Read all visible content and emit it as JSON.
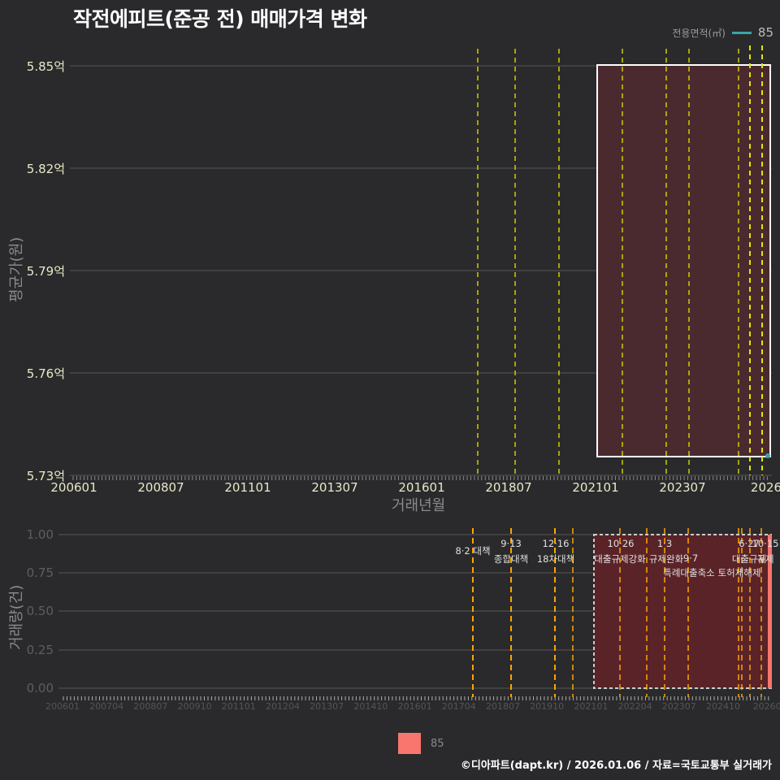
{
  "title": "작전에피트(준공 전) 매매가격 변화",
  "legend_top": {
    "title": "전용면적(㎡)",
    "label": "85",
    "color": "#3aa6a6"
  },
  "legend_bottom": {
    "label": "85",
    "color": "#f8766d"
  },
  "footer": "©디아파트(dapt.kr) / 2026.01.06 / 자료=국토교통부 실거래가",
  "colors": {
    "background": "#2a2a2c",
    "grid": "#555555",
    "vline_top": "#e5e500",
    "vline_bottom": "#ffa500",
    "highlight_fill": "#4a2a2e",
    "highlight_fill_bottom": "#5a2328"
  },
  "chart_data": [
    {
      "type": "line",
      "title": "작전에피트(준공 전) 매매가격 변화",
      "xlabel": "거래년월",
      "ylabel": "평균가(원)",
      "y_ticks": [
        "5.85억",
        "5.82억",
        "5.79억",
        "5.76억",
        "5.73억"
      ],
      "x_ticks": [
        "200601",
        "200807",
        "201101",
        "201307",
        "201601",
        "201807",
        "202101",
        "202307",
        "2026"
      ],
      "ylim": [
        5.73,
        5.85
      ],
      "series": [
        {
          "name": "85",
          "x": [
            "202512"
          ],
          "values": [
            5.735
          ]
        }
      ],
      "highlight_box": {
        "x_start": "202012",
        "x_end": "202601",
        "y_start": 5.735,
        "y_end": 5.85
      },
      "legend_position": "top-right",
      "grid": true
    },
    {
      "type": "bar",
      "xlabel": "",
      "ylabel": "거래량(건)",
      "y_ticks": [
        "1.00",
        "0.75",
        "0.50",
        "0.25",
        "0.00"
      ],
      "x_ticks": [
        "200601",
        "200704",
        "200807",
        "200910",
        "201101",
        "201204",
        "201307",
        "201410",
        "201601",
        "201704",
        "201807",
        "201910",
        "202101",
        "202204",
        "202307",
        "202410",
        "20260"
      ],
      "ylim": [
        0,
        1
      ],
      "series": [
        {
          "name": "85",
          "x": [
            "202512"
          ],
          "values": [
            1
          ]
        }
      ],
      "annotations": [
        {
          "date": "8·2 대책",
          "label": ""
        },
        {
          "date": "9·13",
          "label": "종합대책"
        },
        {
          "date": "12·16",
          "label": "18차대책"
        },
        {
          "date": "10·26",
          "label": "대출규제강화"
        },
        {
          "date": "1·3",
          "label": "규제완화"
        },
        {
          "date": "9·7",
          "label": "특례대출축소"
        },
        {
          "date": "",
          "label": "토허제해제"
        },
        {
          "date": "6·27",
          "label": "대출규제"
        },
        {
          "date": "10·15",
          "label": "규제"
        }
      ],
      "legend_position": "bottom",
      "grid": true
    }
  ]
}
